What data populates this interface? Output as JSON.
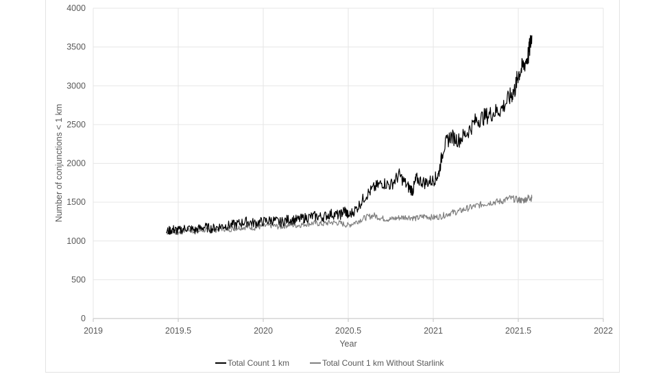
{
  "chart_data": {
    "type": "line",
    "title": "",
    "xlabel": "Year",
    "ylabel": "Number of conjunctions < 1 km",
    "xlim": [
      2019,
      2022
    ],
    "ylim": [
      0,
      4000
    ],
    "xticks": [
      2019,
      2019.5,
      2020,
      2020.5,
      2021,
      2021.5,
      2022
    ],
    "xtick_labels": [
      "2019",
      "2019.5",
      "2020",
      "2020.5",
      "2021",
      "2021.5",
      "2022"
    ],
    "yticks": [
      0,
      500,
      1000,
      1500,
      2000,
      2500,
      3000,
      3500,
      4000
    ],
    "ytick_labels": [
      "0",
      "500",
      "1000",
      "1500",
      "2000",
      "2500",
      "3000",
      "3500",
      "4000"
    ],
    "grid": true,
    "legend_position": "bottom",
    "series": [
      {
        "name": "Total Count 1 km",
        "color": "#000000",
        "x": [
          2019.43,
          2019.47,
          2019.5,
          2019.55,
          2019.6,
          2019.65,
          2019.7,
          2019.75,
          2019.8,
          2019.85,
          2019.9,
          2019.95,
          2020.0,
          2020.05,
          2020.1,
          2020.15,
          2020.2,
          2020.25,
          2020.3,
          2020.35,
          2020.4,
          2020.45,
          2020.48,
          2020.5,
          2020.55,
          2020.6,
          2020.65,
          2020.7,
          2020.75,
          2020.8,
          2020.85,
          2020.88,
          2020.9,
          2020.95,
          2021.0,
          2021.03,
          2021.06,
          2021.1,
          2021.15,
          2021.2,
          2021.25,
          2021.3,
          2021.35,
          2021.4,
          2021.45,
          2021.48,
          2021.5,
          2021.53,
          2021.56,
          2021.58
        ],
        "y": [
          1120,
          1150,
          1130,
          1170,
          1140,
          1180,
          1160,
          1190,
          1200,
          1220,
          1250,
          1230,
          1250,
          1270,
          1240,
          1280,
          1270,
          1300,
          1320,
          1310,
          1350,
          1330,
          1400,
          1320,
          1420,
          1580,
          1680,
          1750,
          1720,
          1850,
          1700,
          1650,
          1800,
          1750,
          1780,
          1850,
          2200,
          2350,
          2300,
          2400,
          2550,
          2600,
          2650,
          2700,
          2850,
          2950,
          3150,
          3250,
          3400,
          3650
        ]
      },
      {
        "name": "Total Count 1 km Without Starlink",
        "color": "#7f7f7f",
        "x": [
          2019.43,
          2019.47,
          2019.5,
          2019.55,
          2019.6,
          2019.65,
          2019.7,
          2019.75,
          2019.8,
          2019.85,
          2019.9,
          2019.95,
          2020.0,
          2020.05,
          2020.1,
          2020.15,
          2020.2,
          2020.25,
          2020.3,
          2020.35,
          2020.4,
          2020.45,
          2020.5,
          2020.55,
          2020.6,
          2020.65,
          2020.7,
          2020.75,
          2020.8,
          2020.85,
          2020.9,
          2020.95,
          2021.0,
          2021.05,
          2021.1,
          2021.15,
          2021.2,
          2021.25,
          2021.3,
          2021.35,
          2021.4,
          2021.45,
          2021.5,
          2021.53,
          2021.56,
          2021.58
        ],
        "y": [
          1110,
          1130,
          1100,
          1150,
          1120,
          1140,
          1130,
          1160,
          1150,
          1170,
          1180,
          1170,
          1190,
          1200,
          1180,
          1210,
          1200,
          1220,
          1230,
          1220,
          1240,
          1230,
          1200,
          1250,
          1300,
          1330,
          1290,
          1280,
          1300,
          1310,
          1290,
          1320,
          1300,
          1320,
          1360,
          1380,
          1420,
          1450,
          1480,
          1500,
          1510,
          1550,
          1530,
          1520,
          1560,
          1550
        ]
      }
    ]
  }
}
